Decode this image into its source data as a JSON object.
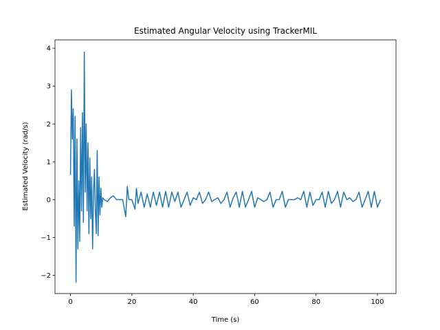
{
  "chart_data": {
    "type": "line",
    "title": "Estimated Angular Velocity using TrackerMIL",
    "xlabel": "Time (s)",
    "ylabel": "Estimated Velocity (rad/s)",
    "color": "#1f77b4",
    "x": [
      0,
      0.3,
      0.6,
      0.9,
      1.2,
      1.5,
      1.8,
      2.1,
      2.4,
      2.7,
      3,
      3.3,
      3.6,
      3.9,
      4.2,
      4.5,
      4.8,
      5.1,
      5.4,
      5.7,
      6,
      6.3,
      6.6,
      6.9,
      7.2,
      7.5,
      7.8,
      8.1,
      8.4,
      8.7,
      9,
      9.3,
      9.6,
      9.9,
      10.2,
      10.5,
      11,
      12,
      13,
      14,
      15,
      16,
      17,
      18,
      18.5,
      19,
      20,
      21,
      21.5,
      22,
      23,
      24,
      25,
      26,
      27,
      28,
      29,
      30,
      31,
      32,
      33,
      34,
      35,
      36,
      37,
      38,
      39,
      40,
      41,
      42,
      43,
      44,
      45,
      46,
      47,
      48,
      49,
      50,
      51,
      52,
      53,
      54,
      55,
      56,
      57,
      58,
      59,
      60,
      61,
      62,
      63,
      64,
      65,
      66,
      67,
      68,
      69,
      70,
      71,
      72,
      73,
      74,
      75,
      76,
      77,
      78,
      79,
      80,
      81,
      82,
      83,
      84,
      85,
      86,
      87,
      88,
      89,
      90,
      91,
      92,
      93,
      94,
      95,
      96,
      97,
      98,
      99,
      100,
      101
    ],
    "values": [
      0.65,
      2.9,
      1.6,
      2.4,
      -0.7,
      2.2,
      -2.18,
      1.6,
      -1.3,
      0.5,
      -1.1,
      1.9,
      -0.3,
      2.3,
      -0.6,
      3.9,
      0.2,
      2.0,
      -0.3,
      1.5,
      -0.9,
      1.1,
      -0.5,
      0.6,
      -1.3,
      0.2,
      0.8,
      -0.3,
      -0.9,
      1.3,
      -0.95,
      0.6,
      -0.4,
      0.3,
      -0.2,
      0.05,
      0,
      -0.05,
      0.05,
      0.1,
      0,
      0,
      0,
      -0.45,
      0.35,
      0,
      0,
      -0.25,
      0.3,
      -0.1,
      0.2,
      -0.2,
      0.15,
      -0.2,
      0.2,
      -0.15,
      0.2,
      -0.2,
      0.22,
      -0.2,
      0.2,
      -0.05,
      0.2,
      -0.2,
      0,
      0.2,
      -0.15,
      0.05,
      0,
      0.2,
      -0.1,
      0,
      0.2,
      -0.05,
      0,
      0.05,
      -0.1,
      0,
      0.2,
      -0.2,
      0.05,
      0.2,
      -0.2,
      0.22,
      -0.2,
      0,
      0.22,
      -0.2,
      0.05,
      0,
      -0.05,
      0,
      0.2,
      -0.2,
      0,
      0,
      0.22,
      -0.2,
      0,
      0,
      0,
      0.05,
      0,
      0.22,
      -0.2,
      0.2,
      -0.15,
      0,
      0,
      0.2,
      -0.2,
      0.22,
      -0.1,
      0,
      0.22,
      -0.2,
      0.2,
      0,
      0.05,
      -0.05,
      0,
      0.2,
      -0.2,
      0,
      0.22,
      -0.2,
      0.22,
      -0.2,
      0
    ],
    "xlim": [
      -5.05,
      106.05
    ],
    "xticks": [
      0,
      20,
      40,
      60,
      80,
      100
    ],
    "ylim": [
      -2.48,
      4.22
    ],
    "yticks": [
      {
        "value": -2,
        "label": "−2"
      },
      {
        "value": -1,
        "label": "−1"
      },
      0,
      1,
      2,
      3,
      4
    ]
  }
}
